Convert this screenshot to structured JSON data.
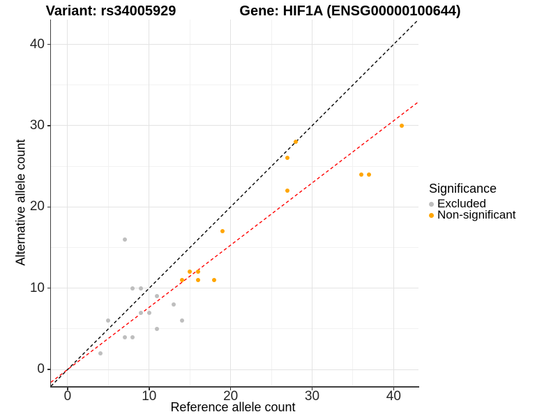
{
  "titles": {
    "variant": "Variant: rs34005929",
    "gene": "Gene: HIF1A (ENSG00000100644)"
  },
  "axes": {
    "x": {
      "label": "Reference allele count",
      "tick_values": [
        0,
        10,
        20,
        30,
        40
      ],
      "minor_values": [
        5,
        15,
        25,
        35
      ],
      "range": [
        -2.05,
        43.05
      ]
    },
    "y": {
      "label": "Alternative allele count",
      "tick_values": [
        0,
        10,
        20,
        30,
        40
      ],
      "minor_values": [
        5,
        15,
        25,
        35
      ],
      "range": [
        -2.05,
        43.05
      ]
    }
  },
  "legend": {
    "title": "Significance",
    "items": [
      {
        "label": "Excluded",
        "color": "#BEBEBE"
      },
      {
        "label": "Non-significant",
        "color": "#FFA500"
      }
    ]
  },
  "colors": {
    "excluded": "#BEBEBE",
    "non_significant": "#FFA500",
    "identity_line": "#000000",
    "fit_line": "#FF0000",
    "grid_major": "#E3E3E3",
    "grid_minor": "#F2F2F2",
    "axis_line": "#3F3F3F"
  },
  "chart_data": {
    "type": "scatter",
    "title": "Variant: rs34005929 | Gene: HIF1A (ENSG00000100644)",
    "xlabel": "Reference allele count",
    "ylabel": "Alternative allele count",
    "xlim": [
      -2.05,
      43.05
    ],
    "ylim": [
      -2.05,
      43.05
    ],
    "grid": true,
    "legend_position": "right",
    "legend_title": "Significance",
    "series": [
      {
        "name": "Excluded",
        "color": "#BEBEBE",
        "points": [
          [
            4,
            2
          ],
          [
            5,
            6
          ],
          [
            7,
            4
          ],
          [
            7,
            16
          ],
          [
            8,
            4
          ],
          [
            8,
            10
          ],
          [
            9,
            7
          ],
          [
            9,
            10
          ],
          [
            10,
            7
          ],
          [
            11,
            5
          ],
          [
            11,
            9
          ],
          [
            13,
            8
          ],
          [
            14,
            6
          ]
        ]
      },
      {
        "name": "Non-significant",
        "color": "#FFA500",
        "points": [
          [
            14,
            11
          ],
          [
            15,
            12
          ],
          [
            16,
            11
          ],
          [
            16,
            12
          ],
          [
            18,
            11
          ],
          [
            19,
            17
          ],
          [
            27,
            22
          ],
          [
            27,
            26
          ],
          [
            28,
            28
          ],
          [
            36,
            24
          ],
          [
            37,
            24
          ],
          [
            41,
            30
          ]
        ]
      }
    ],
    "reference_lines": [
      {
        "name": "identity",
        "slope": 1,
        "intercept": 0,
        "color": "#000000",
        "dashed": true
      },
      {
        "name": "regression-fit",
        "slope": 0.765,
        "intercept": 0,
        "color": "#FF0000",
        "dashed": true
      }
    ]
  }
}
